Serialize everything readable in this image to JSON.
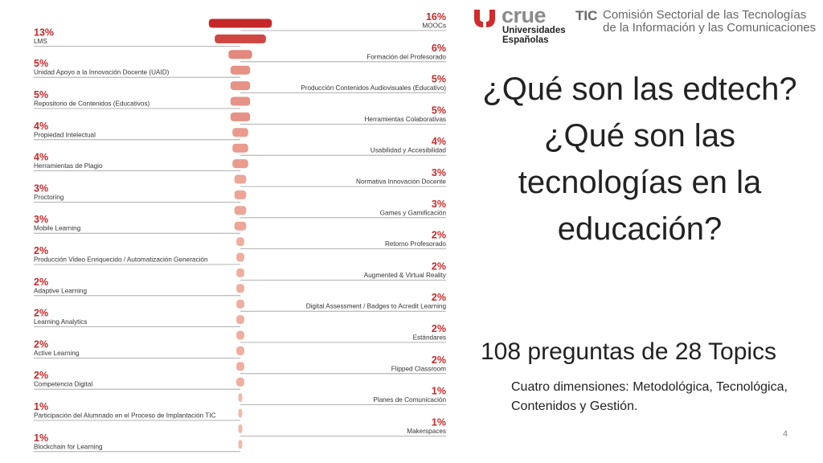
{
  "chart_data": {
    "type": "bar",
    "orientation": "horizontal-centered",
    "categories": [
      "MOOCs",
      "LMS",
      "Formación del Profesorado",
      "Unidad Apoyo a la Innovación Docente (UAID)",
      "Producción Contenidos Audiovisuales (Educativo)",
      "Repositorio de Contenidos (Educativos)",
      "Herramientas Colaborativas",
      "Propiedad Intelectual",
      "Usabilidad y Accesibilidad",
      "Herramientas de Plagio",
      "Normativa Innovación Docente",
      "Proctoring",
      "Games y Gamificación",
      "Mobile Learning",
      "Retorno Profesorado",
      "Producción Video Enriquecido / Automatización Generación",
      "Augmented & Virtual Reality",
      "Adaptive Learning",
      "Digital Assessment / Badges to Acredit Learning",
      "Learning Analytics",
      "Estándares",
      "Active Learning",
      "Flipped Classroom",
      "Competencia Digital",
      "Planes de Comunicación",
      "Participación del Alumnado en el Proceso de Implantación TIC",
      "Makerspaces",
      "Blockchain for Learning"
    ],
    "values": [
      16,
      13,
      6,
      5,
      5,
      5,
      5,
      4,
      4,
      4,
      3,
      3,
      3,
      3,
      2,
      2,
      2,
      2,
      2,
      2,
      2,
      2,
      2,
      2,
      1,
      1,
      1,
      1
    ],
    "labels": [
      "16%",
      "13%",
      "6%",
      "5%",
      "5%",
      "5%",
      "5%",
      "4%",
      "4%",
      "4%",
      "3%",
      "3%",
      "3%",
      "3%",
      "2%",
      "2%",
      "2%",
      "2%",
      "2%",
      "2%",
      "2%",
      "2%",
      "2%",
      "2%",
      "1%",
      "1%",
      "1%",
      "1%"
    ],
    "label_side": [
      "right",
      "left",
      "right",
      "left",
      "right",
      "left",
      "right",
      "left",
      "right",
      "left",
      "right",
      "left",
      "right",
      "left",
      "right",
      "left",
      "right",
      "left",
      "right",
      "left",
      "right",
      "left",
      "right",
      "left",
      "right",
      "left",
      "right",
      "left"
    ],
    "color_dark": "#c62828",
    "color_light": "#f3b8a8",
    "title": "",
    "xlabel": "",
    "ylabel": ""
  },
  "logo": {
    "brand": "crue",
    "brand_sub": [
      "Universidades",
      "Españolas"
    ],
    "tic": "TIC",
    "org": "Comisión Sectorial de las Tecnologías de la Información y las Comunicaciones"
  },
  "title_lines": [
    "¿Qué son las edtech?",
    "¿Qué son las",
    "tecnologías en la",
    "educación?"
  ],
  "subtitle": "108 preguntas de 28 Topics",
  "dimensions_text": "Cuatro dimensiones: Metodológica, Tecnológica, Contenidos y Gestión.",
  "page_number": "4"
}
